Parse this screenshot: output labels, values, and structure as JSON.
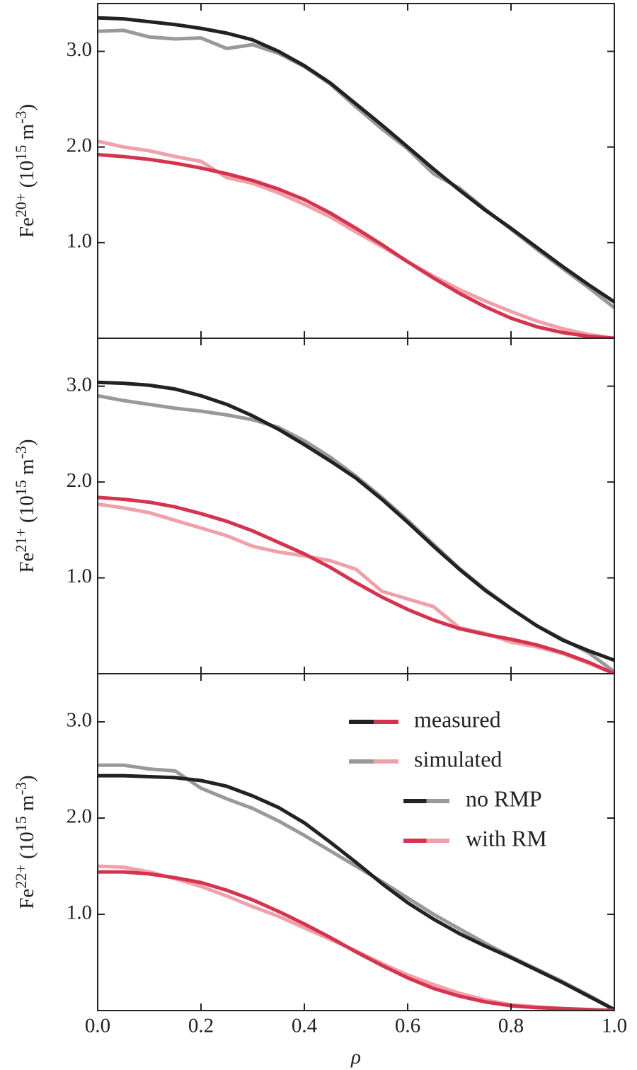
{
  "chart_data": [
    {
      "type": "line",
      "ylabel": [
        "Fe",
        "20+",
        " (10",
        "15",
        " m",
        "-3",
        ")"
      ],
      "xlim": [
        0,
        1
      ],
      "xticks": [
        0,
        0.2,
        0.4,
        0.6,
        0.8,
        1
      ],
      "ylim": [
        0,
        3.5
      ],
      "yticks": [
        {
          "value": 1,
          "label": "1.0"
        },
        {
          "value": 2,
          "label": "2.0"
        },
        {
          "value": 3,
          "label": "3.0"
        }
      ],
      "x": [
        0,
        0.05,
        0.1,
        0.15,
        0.2,
        0.25,
        0.3,
        0.35,
        0.4,
        0.45,
        0.5,
        0.55,
        0.6,
        0.65,
        0.7,
        0.75,
        0.8,
        0.85,
        0.9,
        0.95,
        1
      ],
      "series": [
        {
          "color": "#999999",
          "values": [
            3.21,
            3.22,
            3.15,
            3.13,
            3.14,
            3.03,
            3.07,
            2.98,
            2.84,
            2.66,
            2.42,
            2.19,
            1.98,
            1.72,
            1.57,
            1.35,
            1.14,
            0.93,
            0.73,
            0.53,
            0.32
          ]
        },
        {
          "color": "#222222",
          "values": [
            3.35,
            3.34,
            3.31,
            3.28,
            3.24,
            3.19,
            3.12,
            3.0,
            2.85,
            2.67,
            2.45,
            2.23,
            2.0,
            1.77,
            1.55,
            1.34,
            1.15,
            0.95,
            0.75,
            0.56,
            0.38
          ]
        },
        {
          "color": "#f0a0a8",
          "values": [
            2.06,
            2.0,
            1.96,
            1.9,
            1.85,
            1.68,
            1.62,
            1.52,
            1.4,
            1.27,
            1.11,
            0.96,
            0.8,
            0.65,
            0.51,
            0.39,
            0.28,
            0.18,
            0.1,
            0.04,
            0.0
          ]
        },
        {
          "color": "#d6334f",
          "values": [
            1.92,
            1.9,
            1.87,
            1.83,
            1.78,
            1.72,
            1.65,
            1.56,
            1.45,
            1.31,
            1.15,
            0.98,
            0.8,
            0.63,
            0.47,
            0.33,
            0.21,
            0.12,
            0.06,
            0.02,
            0.0
          ]
        }
      ]
    },
    {
      "type": "line",
      "ylabel": [
        "Fe",
        "21+",
        " (10",
        "15",
        " m",
        "-3",
        ")"
      ],
      "xlim": [
        0,
        1
      ],
      "xticks": [
        0,
        0.2,
        0.4,
        0.6,
        0.8,
        1
      ],
      "ylim": [
        0,
        3.5
      ],
      "yticks": [
        {
          "value": 1,
          "label": "1.0"
        },
        {
          "value": 2,
          "label": "2.0"
        },
        {
          "value": 3,
          "label": "3.0"
        }
      ],
      "x": [
        0,
        0.05,
        0.1,
        0.15,
        0.2,
        0.25,
        0.3,
        0.35,
        0.4,
        0.45,
        0.5,
        0.55,
        0.6,
        0.65,
        0.7,
        0.75,
        0.8,
        0.85,
        0.9,
        0.95,
        1
      ],
      "series": [
        {
          "color": "#999999",
          "values": [
            2.9,
            2.85,
            2.81,
            2.77,
            2.74,
            2.7,
            2.65,
            2.57,
            2.43,
            2.26,
            2.06,
            1.84,
            1.6,
            1.35,
            1.1,
            0.88,
            0.68,
            0.5,
            0.36,
            0.22,
            0.02
          ]
        },
        {
          "color": "#222222",
          "values": [
            3.04,
            3.03,
            3.01,
            2.97,
            2.9,
            2.81,
            2.69,
            2.55,
            2.39,
            2.22,
            2.04,
            1.82,
            1.58,
            1.33,
            1.09,
            0.87,
            0.68,
            0.5,
            0.35,
            0.24,
            0.14
          ]
        },
        {
          "color": "#f0a0a8",
          "values": [
            1.77,
            1.73,
            1.68,
            1.6,
            1.52,
            1.44,
            1.33,
            1.27,
            1.23,
            1.18,
            1.09,
            0.86,
            0.78,
            0.7,
            0.48,
            0.42,
            0.33,
            0.28,
            0.21,
            0.11,
            0.0
          ]
        },
        {
          "color": "#d6334f",
          "values": [
            1.84,
            1.82,
            1.79,
            1.74,
            1.67,
            1.59,
            1.49,
            1.37,
            1.25,
            1.11,
            0.95,
            0.8,
            0.67,
            0.56,
            0.47,
            0.41,
            0.36,
            0.3,
            0.22,
            0.12,
            0.0
          ]
        }
      ]
    },
    {
      "type": "line",
      "ylabel": [
        "Fe",
        "22+",
        " (10",
        "15",
        " m",
        "-3",
        ")"
      ],
      "xlabel": "ρ",
      "xlim": [
        0,
        1
      ],
      "xticks": [
        {
          "value": 0,
          "label": "0.0"
        },
        {
          "value": 0.2,
          "label": "0.2"
        },
        {
          "value": 0.4,
          "label": "0.4"
        },
        {
          "value": 0.6,
          "label": "0.6"
        },
        {
          "value": 0.8,
          "label": "0.8"
        },
        {
          "value": 1,
          "label": "1.0"
        }
      ],
      "ylim": [
        0,
        3.5
      ],
      "yticks": [
        {
          "value": 1,
          "label": "1.0"
        },
        {
          "value": 2,
          "label": "2.0"
        },
        {
          "value": 3,
          "label": "3.0"
        }
      ],
      "x": [
        0,
        0.05,
        0.1,
        0.15,
        0.2,
        0.25,
        0.3,
        0.35,
        0.4,
        0.45,
        0.5,
        0.55,
        0.6,
        0.65,
        0.7,
        0.75,
        0.8,
        0.85,
        0.9,
        0.95,
        1
      ],
      "series": [
        {
          "color": "#999999",
          "values": [
            2.55,
            2.55,
            2.51,
            2.49,
            2.31,
            2.2,
            2.1,
            1.97,
            1.82,
            1.66,
            1.5,
            1.34,
            1.17,
            1.0,
            0.85,
            0.7,
            0.56,
            0.43,
            0.3,
            0.16,
            0.01
          ]
        },
        {
          "color": "#222222",
          "values": [
            2.44,
            2.44,
            2.43,
            2.42,
            2.39,
            2.33,
            2.23,
            2.11,
            1.95,
            1.75,
            1.54,
            1.32,
            1.12,
            0.95,
            0.8,
            0.67,
            0.55,
            0.42,
            0.29,
            0.15,
            0.01
          ]
        },
        {
          "color": "#f0a0a8",
          "values": [
            1.5,
            1.49,
            1.44,
            1.37,
            1.29,
            1.19,
            1.08,
            0.98,
            0.86,
            0.74,
            0.62,
            0.49,
            0.37,
            0.27,
            0.18,
            0.11,
            0.06,
            0.04,
            0.02,
            0.01,
            0.0
          ]
        },
        {
          "color": "#d6334f",
          "values": [
            1.44,
            1.44,
            1.42,
            1.38,
            1.33,
            1.25,
            1.15,
            1.03,
            0.9,
            0.76,
            0.61,
            0.47,
            0.34,
            0.23,
            0.15,
            0.09,
            0.05,
            0.03,
            0.02,
            0.01,
            0.0
          ]
        }
      ],
      "legend": [
        {
          "label": "measured",
          "colors": [
            "#222222",
            "#d6334f"
          ]
        },
        {
          "label": "simulated",
          "colors": [
            "#999999",
            "#f0a0a8"
          ]
        },
        {
          "label": "no RMP",
          "colors": [
            "#222222",
            "#999999"
          ]
        },
        {
          "label": "with RM",
          "colors": [
            "#d6334f",
            "#f0a0a8"
          ]
        }
      ]
    }
  ]
}
